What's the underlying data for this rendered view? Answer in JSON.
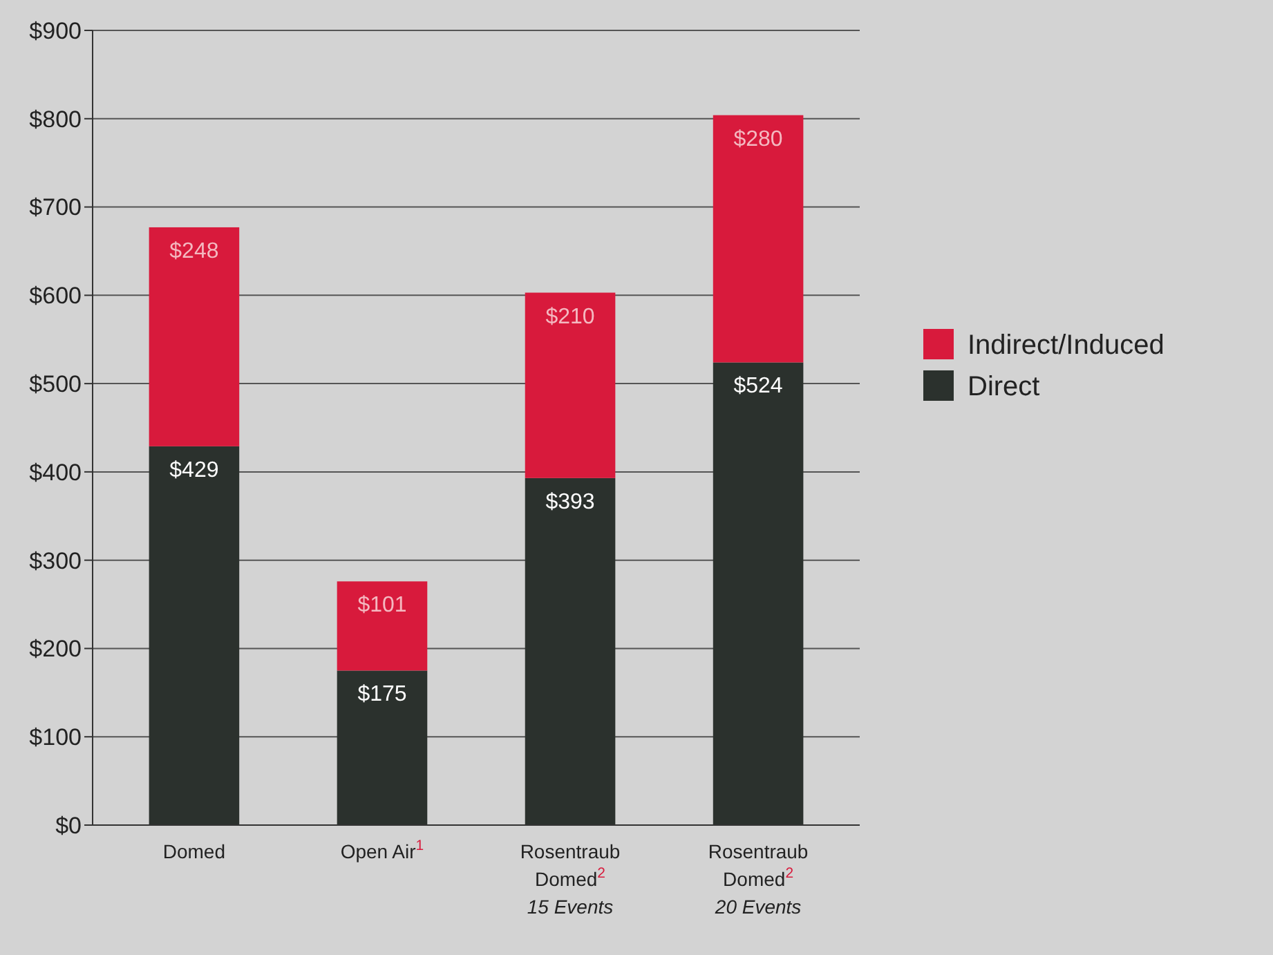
{
  "chart_data": {
    "type": "bar",
    "stacked": true,
    "categories": [
      "Domed",
      "Open Air$^{1}$",
      "Rosentraub\nDomed$^{2}$\n15 Events",
      "Rosentraub\nDomed$^{2}$\n20 Events"
    ],
    "series": [
      {
        "name": "Direct",
        "color": "#2b312d",
        "values": [
          429,
          175,
          393,
          524
        ],
        "value_labels": [
          "$429",
          "$175",
          "$393",
          "$524"
        ]
      },
      {
        "name": "Indirect/Induced",
        "color": "#d81a3c",
        "values": [
          248,
          101,
          210,
          280
        ],
        "value_labels": [
          "$248",
          "$101",
          "$210",
          "$280"
        ]
      }
    ],
    "ylim": [
      0,
      900
    ],
    "yticks": [
      {
        "value": 0,
        "label": "$0"
      },
      {
        "value": 100,
        "label": "$100"
      },
      {
        "value": 200,
        "label": "$200"
      },
      {
        "value": 300,
        "label": "$300"
      },
      {
        "value": 400,
        "label": "$400"
      },
      {
        "value": 500,
        "label": "$500"
      },
      {
        "value": 600,
        "label": "$600"
      },
      {
        "value": 700,
        "label": "$700"
      },
      {
        "value": 800,
        "label": "$800"
      },
      {
        "value": 900,
        "label": "$900"
      }
    ],
    "grid": "y",
    "legend": "right"
  }
}
